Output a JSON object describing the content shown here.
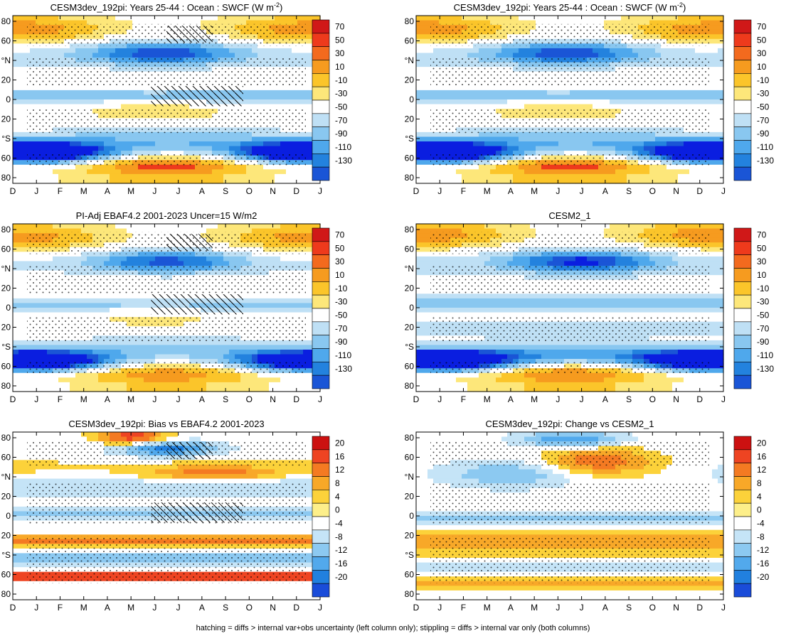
{
  "figure": {
    "footer": "hatching = diffs > internal var+obs uncertainty (left column only); stippling = diffs > internal var only (both columns)"
  },
  "chart_data": [
    {
      "type": "heatmap",
      "title": "CESM3dev_192pi: Years 25-44 : Ocean : SWCF (W m",
      "title_sup": "-2",
      "title_tail": ")",
      "field": "a",
      "hatching": true,
      "stippling": true,
      "colorbar": [
        "70",
        "50",
        "30",
        "10",
        "-10",
        "-30",
        "-50",
        "-70",
        "-90",
        "-110",
        "-130"
      ],
      "x_ticks": [
        "D",
        "J",
        "F",
        "M",
        "A",
        "M",
        "J",
        "J",
        "A",
        "S",
        "O",
        "N",
        "D",
        "J"
      ],
      "y_ticks": [
        "80",
        "60",
        "°N",
        "20",
        "0",
        "20",
        "°S",
        "60",
        "80"
      ]
    },
    {
      "type": "heatmap",
      "title": "CESM3dev_192pi: Years 25-44 : Ocean : SWCF (W m",
      "title_sup": "-2",
      "title_tail": ")",
      "field": "a",
      "hatching": false,
      "stippling": true,
      "colorbar": [
        "70",
        "50",
        "30",
        "10",
        "-10",
        "-30",
        "-50",
        "-70",
        "-90",
        "-110",
        "-130"
      ],
      "x_ticks": [
        "D",
        "J",
        "F",
        "M",
        "A",
        "M",
        "J",
        "J",
        "A",
        "S",
        "O",
        "N",
        "D",
        "J"
      ],
      "y_ticks": [
        "80",
        "60",
        "°N",
        "20",
        "0",
        "20",
        "°S",
        "60",
        "80"
      ]
    },
    {
      "type": "heatmap",
      "title": "PI-Adj EBAF4.2 2001-2023 Uncer=15 W/m2",
      "field": "b",
      "hatching": true,
      "stippling": true,
      "colorbar": [
        "70",
        "50",
        "30",
        "10",
        "-10",
        "-30",
        "-50",
        "-70",
        "-90",
        "-110",
        "-130"
      ],
      "x_ticks": [
        "D",
        "J",
        "F",
        "M",
        "A",
        "M",
        "J",
        "J",
        "A",
        "S",
        "O",
        "N",
        "D",
        "J"
      ],
      "y_ticks": [
        "80",
        "60",
        "°N",
        "20",
        "0",
        "20",
        "°S",
        "60",
        "80"
      ]
    },
    {
      "type": "heatmap",
      "title": "CESM2_1",
      "field": "c",
      "hatching": false,
      "stippling": true,
      "colorbar": [
        "70",
        "50",
        "30",
        "10",
        "-10",
        "-30",
        "-50",
        "-70",
        "-90",
        "-110",
        "-130"
      ],
      "x_ticks": [
        "D",
        "J",
        "F",
        "M",
        "A",
        "M",
        "J",
        "J",
        "A",
        "S",
        "O",
        "N",
        "D",
        "J"
      ],
      "y_ticks": [
        "80",
        "60",
        "°N",
        "20",
        "0",
        "20",
        "°S",
        "60",
        "80"
      ]
    },
    {
      "type": "heatmap",
      "title": "CESM3dev_192pi: Bias vs EBAF4.2 2001-2023",
      "field": "d",
      "hatching": true,
      "stippling": true,
      "colorbar": [
        "20",
        "16",
        "12",
        "8",
        "4",
        "0",
        "-4",
        "-8",
        "-12",
        "-16",
        "-20"
      ],
      "x_ticks": [
        "D",
        "J",
        "F",
        "M",
        "A",
        "M",
        "J",
        "J",
        "A",
        "S",
        "O",
        "N",
        "D",
        "J"
      ],
      "y_ticks": [
        "80",
        "60",
        "°N",
        "20",
        "0",
        "20",
        "°S",
        "60",
        "80"
      ]
    },
    {
      "type": "heatmap",
      "title": "CESM3dev_192pi: Change vs CESM2_1",
      "field": "e",
      "hatching": false,
      "stippling": true,
      "colorbar": [
        "20",
        "16",
        "12",
        "8",
        "4",
        "0",
        "-4",
        "-8",
        "-12",
        "-16",
        "-20"
      ],
      "x_ticks": [
        "D",
        "J",
        "F",
        "M",
        "A",
        "M",
        "J",
        "J",
        "A",
        "S",
        "O",
        "N",
        "D",
        "J"
      ],
      "y_ticks": [
        "80",
        "60",
        "°N",
        "20",
        "0",
        "20",
        "°S",
        "60",
        "80"
      ]
    }
  ]
}
